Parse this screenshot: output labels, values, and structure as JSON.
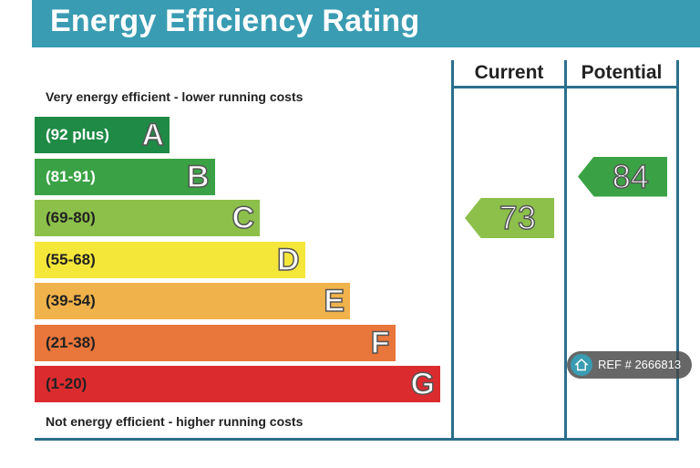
{
  "title": "Energy Efficiency Rating",
  "chart_data": {
    "type": "bar",
    "title": "Energy Efficiency Rating",
    "top_caption": "Very energy efficient - lower running costs",
    "bottom_caption": "Not energy efficient - higher running costs",
    "columns": [
      "Current",
      "Potential"
    ],
    "bands": [
      {
        "range": "(92 plus)",
        "letter": "A",
        "color": "#1f8a45",
        "text_color": "#ffffff"
      },
      {
        "range": "(81-91)",
        "letter": "B",
        "color": "#3aa245",
        "text_color": "#ffffff"
      },
      {
        "range": "(69-80)",
        "letter": "C",
        "color": "#8cc04a",
        "text_color": "#222222"
      },
      {
        "range": "(55-68)",
        "letter": "D",
        "color": "#f5e63a",
        "text_color": "#222222"
      },
      {
        "range": "(39-54)",
        "letter": "E",
        "color": "#f0b24a",
        "text_color": "#222222"
      },
      {
        "range": "(21-38)",
        "letter": "F",
        "color": "#e9763a",
        "text_color": "#222222"
      },
      {
        "range": "(1-20)",
        "letter": "G",
        "color": "#dc2b2e",
        "text_color": "#222222"
      }
    ],
    "current": {
      "value": 73,
      "band": "C",
      "color": "#8cc04a"
    },
    "potential": {
      "value": 84,
      "band": "B",
      "color": "#3aa245"
    }
  },
  "ref_badge": {
    "label": "REF # 2666813",
    "icon": "home-icon"
  },
  "colors": {
    "title_bar": "#3a9cb3",
    "frame": "#2b6f8c"
  }
}
